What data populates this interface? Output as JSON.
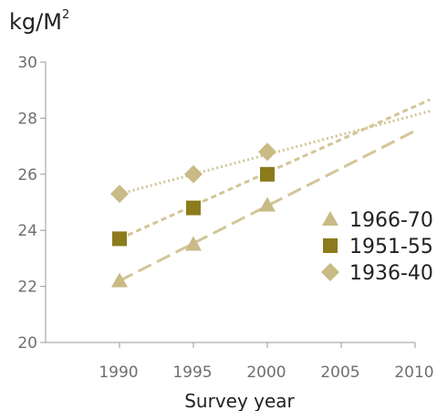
{
  "chart_data": {
    "type": "scatter",
    "ylabel": {
      "base": "kg/M",
      "superscript": "2"
    },
    "xlabel": "Survey year",
    "xlim": [
      1985,
      2010
    ],
    "ylim": [
      20,
      30
    ],
    "x_ticks": [
      1990,
      1995,
      2000,
      2005,
      2010
    ],
    "y_ticks": [
      20,
      22,
      24,
      26,
      28,
      30
    ],
    "legend_position": "right",
    "series": [
      {
        "name": "1966-70",
        "marker": "triangle",
        "color": "#c9ba86",
        "line_style": "long-dash",
        "x": [
          1990,
          1995,
          2000
        ],
        "values": [
          22.2,
          23.5,
          24.9
        ],
        "trend": {
          "x": [
            1990,
            2010
          ],
          "y": [
            22.2,
            27.55
          ]
        }
      },
      {
        "name": "1951-55",
        "marker": "square",
        "color": "#8c7b1c",
        "line_style": "short-dash",
        "x": [
          1990,
          1995,
          2000
        ],
        "values": [
          23.7,
          24.8,
          26.0
        ],
        "trend": {
          "x": [
            1990,
            2011
          ],
          "y": [
            23.7,
            28.66
          ]
        }
      },
      {
        "name": "1936-40",
        "marker": "diamond",
        "color": "#c9ba86",
        "line_style": "dotted",
        "x": [
          1990,
          1995,
          2000
        ],
        "values": [
          25.3,
          26.0,
          26.8
        ],
        "trend": {
          "x": [
            1990,
            2011
          ],
          "y": [
            25.3,
            28.25
          ]
        }
      }
    ],
    "colors": {
      "axis": "#9a9a9a",
      "trend": "#d2c697"
    }
  }
}
